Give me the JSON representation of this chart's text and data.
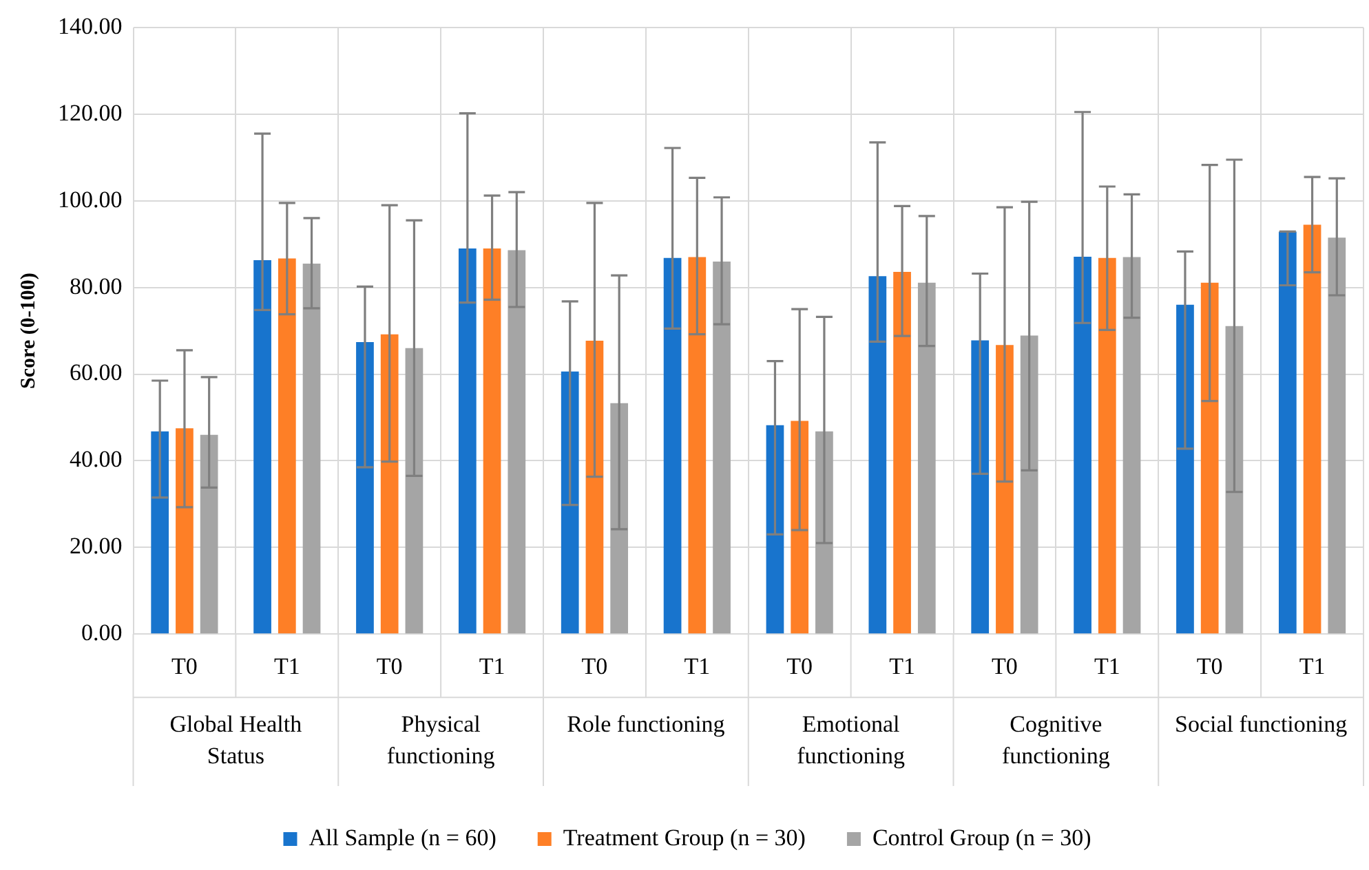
{
  "chart_data": {
    "type": "bar",
    "ylabel": "Score (0-100)",
    "categories": [
      "T0",
      "T1",
      "T0",
      "T1",
      "T0",
      "T1",
      "T0",
      "T1",
      "T0",
      "T1",
      "T0",
      "T1"
    ],
    "annotations": [
      "Global Health Status",
      "Physical functioning",
      "Role functioning",
      "Emotional functioning",
      "Cognitive functioning",
      "Social functioning"
    ],
    "series": [
      {
        "name": "All Sample (n = 60)",
        "color": "#1874cd",
        "values": [
          46.8,
          86.3,
          67.4,
          89.0,
          60.6,
          86.8,
          48.2,
          82.6,
          67.8,
          87.1,
          76.0,
          92.9
        ],
        "errors": [
          [
            31.5,
            58.5
          ],
          [
            74.8,
            115.5
          ],
          [
            38.5,
            80.2
          ],
          [
            76.5,
            120.2
          ],
          [
            29.8,
            76.8
          ],
          [
            70.5,
            112.2
          ],
          [
            23,
            63
          ],
          [
            67.5,
            113.5
          ],
          [
            37,
            83.2
          ],
          [
            71.8,
            120.5
          ],
          [
            42.8,
            88.3
          ],
          [
            80.5,
            92.9
          ]
        ]
      },
      {
        "name": "Treatment Group (n = 30)",
        "color": "#fe7f26",
        "values": [
          47.5,
          86.7,
          69.2,
          89.0,
          67.7,
          87.0,
          49.2,
          83.6,
          66.7,
          86.8,
          81.1,
          94.5
        ],
        "errors": [
          [
            29.3,
            65.5
          ],
          [
            73.8,
            99.5
          ],
          [
            39.8,
            99
          ],
          [
            77.2,
            101.2
          ],
          [
            36.3,
            99.5
          ],
          [
            69.2,
            105.3
          ],
          [
            24,
            75
          ],
          [
            68.8,
            98.8
          ],
          [
            35.2,
            98.5
          ],
          [
            70.2,
            103.3
          ],
          [
            53.8,
            108.3
          ],
          [
            83.5,
            105.5
          ]
        ]
      },
      {
        "name": "Control Group (n = 30)",
        "color": "#a5a5a5",
        "values": [
          46.0,
          85.5,
          66.0,
          88.6,
          53.3,
          86.0,
          46.8,
          81.1,
          68.9,
          87.0,
          71.1,
          91.5
        ],
        "errors": [
          [
            33.8,
            59.3
          ],
          [
            75.2,
            96
          ],
          [
            36.5,
            95.5
          ],
          [
            75.5,
            102
          ],
          [
            24.2,
            82.8
          ],
          [
            71.5,
            100.8
          ],
          [
            21,
            73.2
          ],
          [
            66.5,
            96.5
          ],
          [
            37.8,
            99.8
          ],
          [
            73,
            101.5
          ],
          [
            32.8,
            109.5
          ],
          [
            78.2,
            105.2
          ]
        ]
      }
    ],
    "ylim": [
      0,
      140
    ],
    "yticks": [
      {
        "value": 0,
        "label": "0.00"
      },
      {
        "value": 20,
        "label": "20.00"
      },
      {
        "value": 40,
        "label": "40.00"
      },
      {
        "value": 60,
        "label": "60.00"
      },
      {
        "value": 80,
        "label": "80.00"
      },
      {
        "value": 100,
        "label": "100.00"
      },
      {
        "value": 120,
        "label": "120.00"
      },
      {
        "value": 140,
        "label": "140.00"
      }
    ],
    "grid": true,
    "legend": "bottom"
  }
}
